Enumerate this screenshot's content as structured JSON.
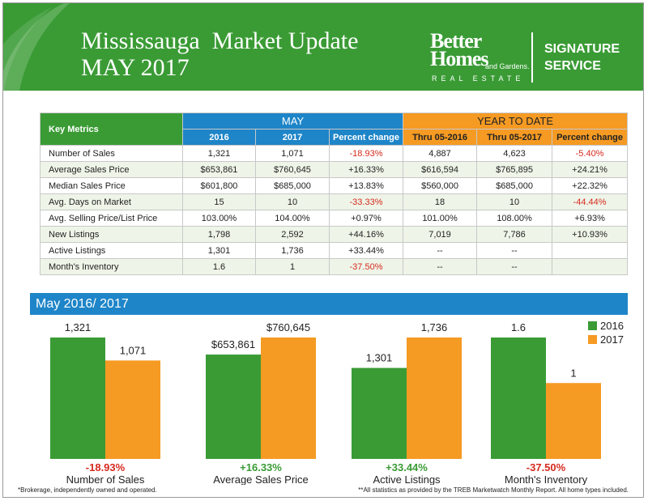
{
  "header": {
    "title_line1": "Mississauga  Market Update",
    "title_line2": "MAY 2017",
    "brand_line1": "Better",
    "brand_line2": "Homes",
    "brand_sub": "and Gardens.",
    "brand_realestate": "REAL ESTATE",
    "signature_line1": "SIGNATURE",
    "signature_line2": "SERVICE"
  },
  "table": {
    "corner_label": "Key Metrics",
    "group_may": "MAY",
    "group_ytd": "YEAR TO DATE",
    "columns": [
      "2016",
      "2017",
      "Percent change",
      "Thru 05-2016",
      "Thru 05-2017",
      "Percent change"
    ],
    "rows": [
      {
        "metric": "Number of Sales",
        "cells": [
          "1,321",
          "1,071",
          "-18.93%",
          "4,887",
          "4,623",
          "-5.40%"
        ]
      },
      {
        "metric": "Average Sales Price",
        "cells": [
          "$653,861",
          "$760,645",
          "+16.33%",
          "$616,594",
          "$765,895",
          "+24.21%"
        ]
      },
      {
        "metric": "Median Sales Price",
        "cells": [
          "$601,800",
          "$685,000",
          "+13.83%",
          "$560,000",
          "$685,000",
          "+22.32%"
        ]
      },
      {
        "metric": "Avg. Days on Market",
        "cells": [
          "15",
          "10",
          "-33.33%",
          "18",
          "10",
          "-44.44%"
        ]
      },
      {
        "metric": "Avg. Selling Price/List Price",
        "cells": [
          "103.00%",
          "104.00%",
          "+0.97%",
          "101.00%",
          "108.00%",
          "+6.93%"
        ]
      },
      {
        "metric": "New Listings",
        "cells": [
          "1,798",
          "2,592",
          "+44.16%",
          "7,019",
          "7,786",
          "+10.93%"
        ]
      },
      {
        "metric": "Active Listings",
        "cells": [
          "1,301",
          "1,736",
          "+33.44%",
          "--",
          "--",
          ""
        ]
      },
      {
        "metric": "Month's Inventory",
        "cells": [
          "1.6",
          "1",
          "-37.50%",
          "--",
          "--",
          ""
        ]
      }
    ]
  },
  "banner": "May 2016/ 2017",
  "colors": {
    "green": "#3a9b35",
    "orange": "#f59a23",
    "blue": "#1e85c8",
    "negative": "#d62a1e",
    "positive": "#3a9b35"
  },
  "chart_data": {
    "type": "bar",
    "title": "May 2016/ 2017",
    "legend_position": "top-right",
    "series": [
      {
        "name": "2016",
        "color": "#3a9b35"
      },
      {
        "name": "2017",
        "color": "#f59a23"
      }
    ],
    "groups": [
      {
        "category": "Number of Sales",
        "change": "-18.93%",
        "values": [
          1321,
          1071
        ],
        "labels": [
          "1,321",
          "1,071"
        ]
      },
      {
        "category": "Average Sales Price",
        "change": "+16.33%",
        "values": [
          653861,
          760645
        ],
        "labels": [
          "$653,861",
          "$760,645"
        ]
      },
      {
        "category": "Active Listings",
        "change": "+33.44%",
        "values": [
          1301,
          1736
        ],
        "labels": [
          "1,301",
          "1,736"
        ]
      },
      {
        "category": "Month's Inventory",
        "change": "-37.50%",
        "values": [
          1.6,
          1
        ],
        "labels": [
          "1.6",
          "1"
        ]
      }
    ]
  },
  "footnotes": {
    "left": "*Brokerage, independently owned and operated.",
    "right": "**All statistics as provided by the TREB Marketwatch Monthly Report. All home types included."
  }
}
